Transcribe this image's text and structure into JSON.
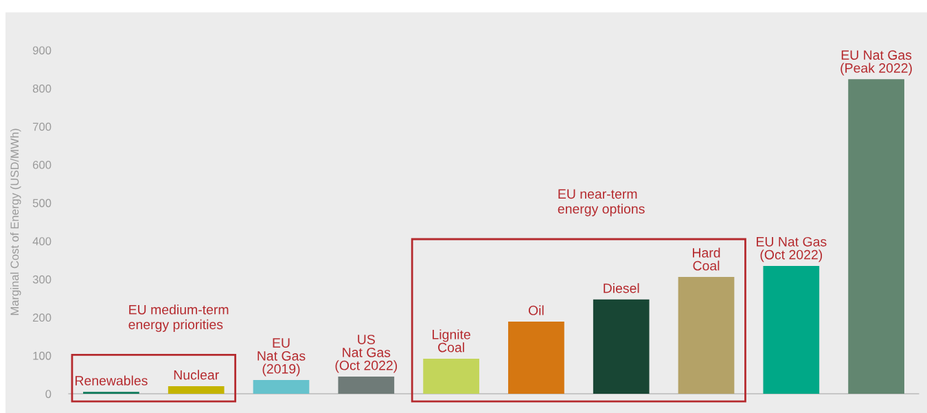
{
  "chart_data": {
    "type": "bar",
    "ylabel": "Marginal Cost of Energy (USD/MWh)",
    "categories": [
      "Renewables",
      "Nuclear",
      "EU\nNat Gas\n(2019)",
      "US\nNat Gas\n(Oct 2022)",
      "Lignite\nCoal",
      "Oil",
      "Diesel",
      "Hard\nCoal",
      "EU Nat Gas\n(Oct 2022)",
      "EU Nat Gas\n(Peak 2022)"
    ],
    "values": [
      5,
      20,
      36,
      45,
      92,
      189,
      247,
      306,
      335,
      824
    ],
    "colors": [
      "#0e7a5a",
      "#c4b400",
      "#66c2cc",
      "#6f7b78",
      "#c3d55a",
      "#d57712",
      "#184634",
      "#b4a267",
      "#00a887",
      "#628670"
    ],
    "ylim": [
      0,
      900
    ],
    "yticks": [
      0,
      100,
      200,
      300,
      400,
      500,
      600,
      700,
      800,
      900
    ],
    "grid": false,
    "annotations": [
      "EU medium-term\nenergy priorities",
      "EU near-term\nenergy options"
    ]
  }
}
